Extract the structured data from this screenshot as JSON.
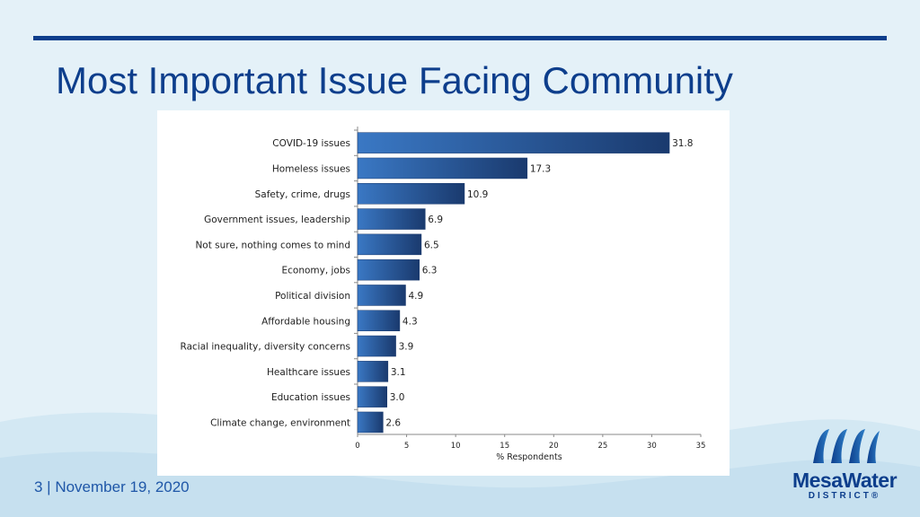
{
  "page": {
    "title": "Most Important Issue Facing Community",
    "footer": "3  |  November 19, 2020"
  },
  "logo": {
    "name": "MesaWater",
    "subtitle": "DISTRICT®"
  },
  "colors": {
    "brand": "#0d3e8c",
    "bar_start": "#3a78c4",
    "bar_end": "#1a3a6e",
    "background": "#e4f1f8"
  },
  "chart_data": {
    "type": "bar",
    "orientation": "horizontal",
    "categories": [
      "COVID-19 issues",
      "Homeless issues",
      "Safety, crime, drugs",
      "Government issues, leadership",
      "Not sure, nothing comes to mind",
      "Economy, jobs",
      "Political division",
      "Affordable housing",
      "Racial inequality, diversity concerns",
      "Healthcare issues",
      "Education issues",
      "Climate change, environment"
    ],
    "values": [
      31.8,
      17.3,
      10.9,
      6.9,
      6.5,
      6.3,
      4.9,
      4.3,
      3.9,
      3.1,
      3.0,
      2.6
    ],
    "value_labels": [
      "31.8",
      "17.3",
      "10.9",
      "6.9",
      "6.5",
      "6.3",
      "4.9",
      "4.3",
      "3.9",
      "3.1",
      "3.0",
      "2.6"
    ],
    "xlabel": "% Respondents",
    "xlim": [
      0,
      35
    ],
    "xticks": [
      0,
      5,
      10,
      15,
      20,
      25,
      30,
      35
    ],
    "grid": false,
    "legend": "none"
  }
}
